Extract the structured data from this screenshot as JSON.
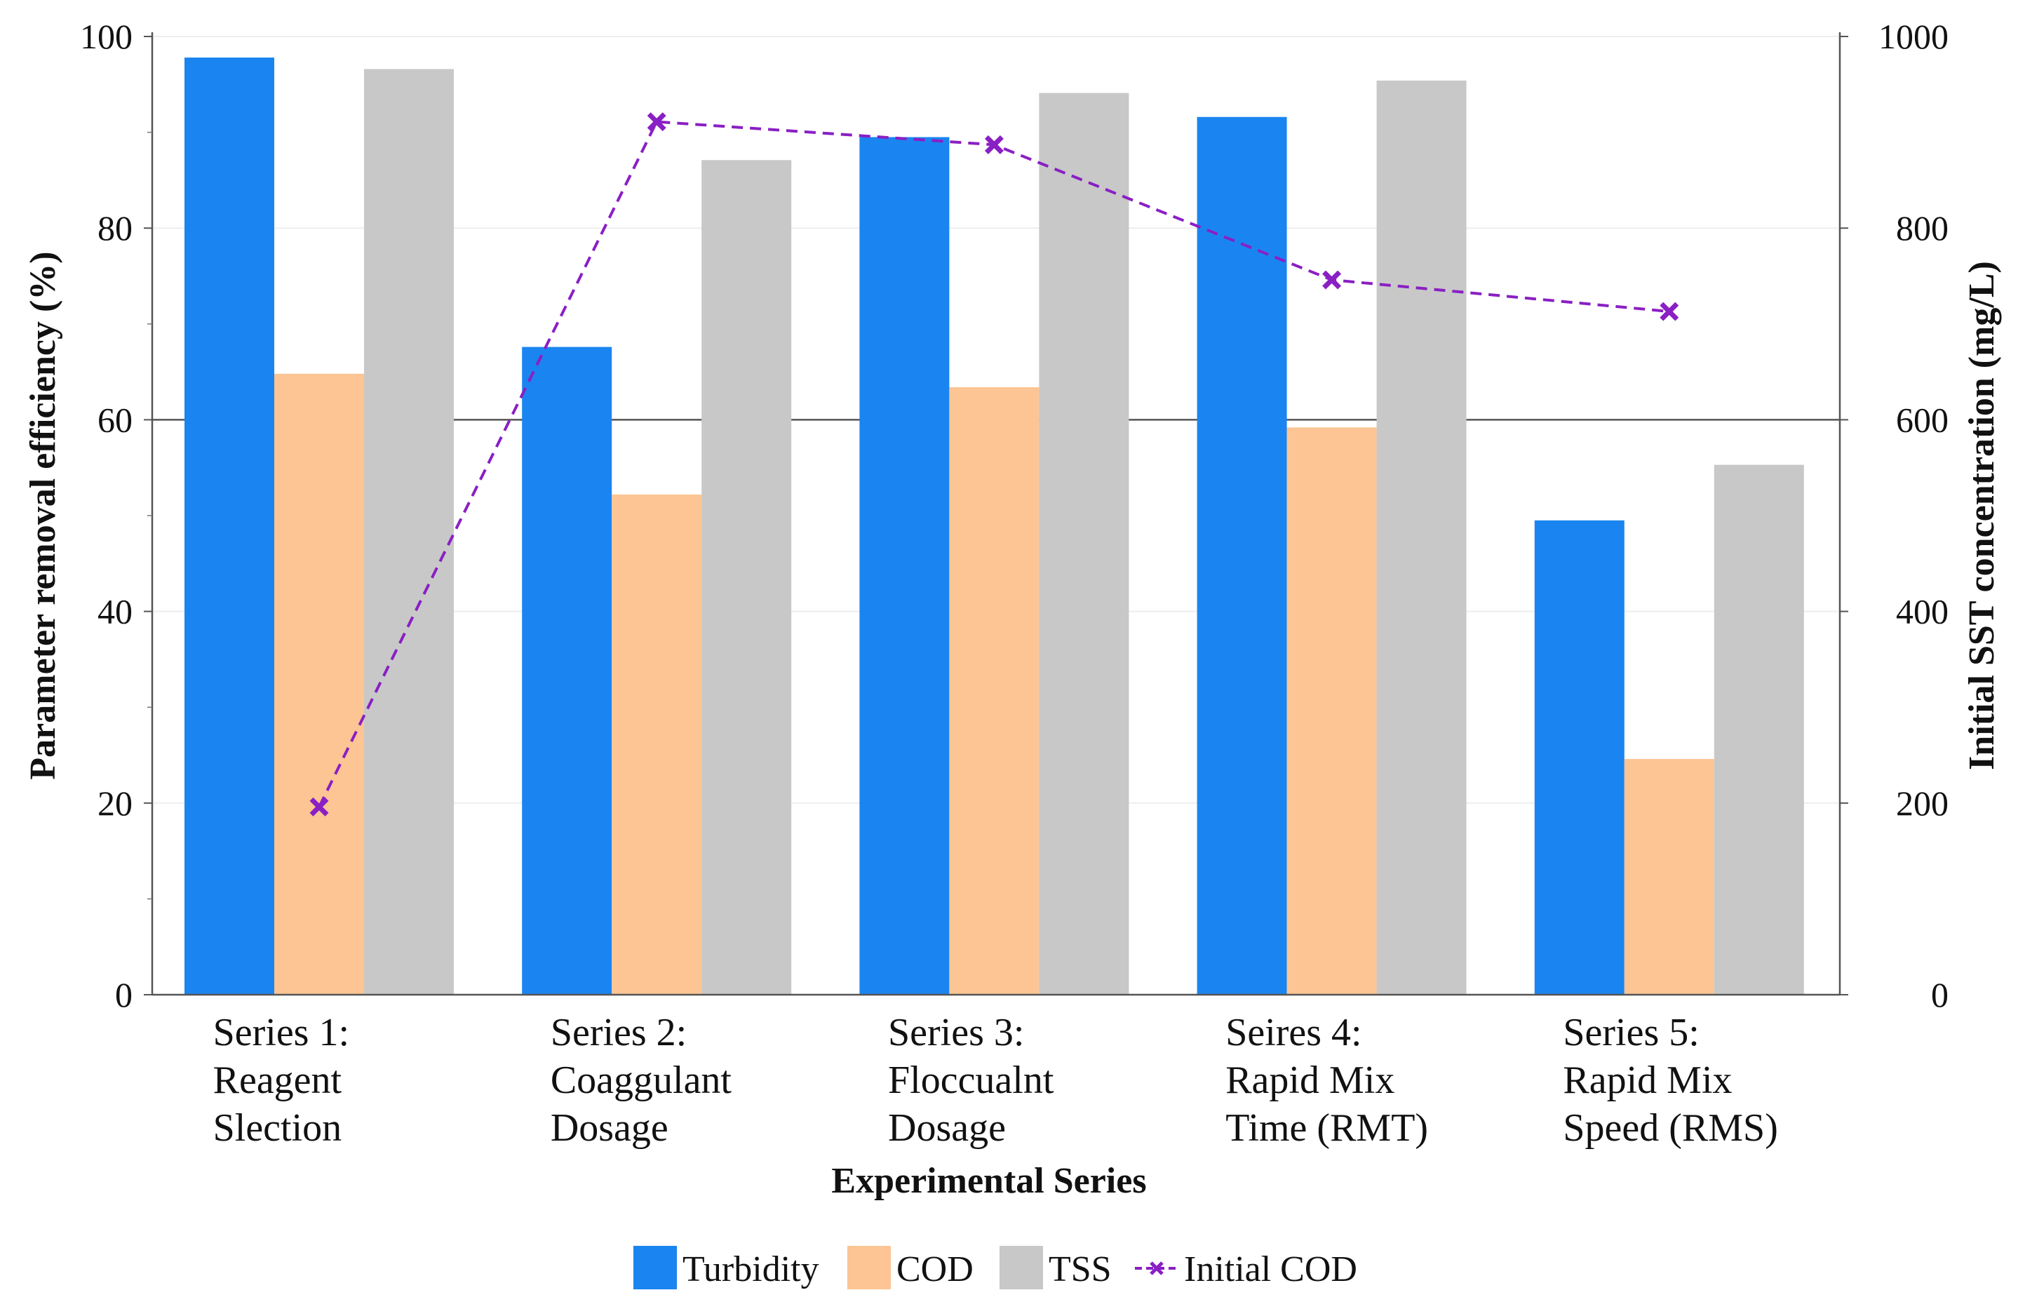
{
  "chart_data": {
    "type": "bar",
    "title": "",
    "xlabel": "Experimental Series",
    "ylabel": "Parameter removal efficiency (%)",
    "y2label": "Initial SST concentration (mg/L)",
    "ylim": [
      0,
      100
    ],
    "y2lim": [
      0,
      1000
    ],
    "yticks": [
      0,
      20,
      40,
      60,
      80,
      100
    ],
    "y2ticks": [
      0,
      200,
      400,
      600,
      800,
      1000
    ],
    "categories": [
      [
        "Series 1:",
        "Reagent",
        "Slection"
      ],
      [
        "Series 2:",
        "Coaggulant",
        "Dosage"
      ],
      [
        "Series 3:",
        "Floccualnt",
        "Dosage"
      ],
      [
        "Seires 4:",
        "Rapid Mix",
        "Time (RMT)"
      ],
      [
        "Series 5:",
        "Rapid Mix",
        "Speed (RMS)"
      ]
    ],
    "series": [
      {
        "name": "Turbidity",
        "type": "bar",
        "axis": "left",
        "color": "#1a85f0",
        "values": [
          97.8,
          67.6,
          89.5,
          91.6,
          49.5
        ]
      },
      {
        "name": "COD",
        "type": "bar",
        "axis": "left",
        "color": "#fcc593",
        "values": [
          64.8,
          52.2,
          63.4,
          59.2,
          24.6
        ]
      },
      {
        "name": "TSS",
        "type": "bar",
        "axis": "left",
        "color": "#c8c8c8",
        "values": [
          96.6,
          87.1,
          94.1,
          95.4,
          55.3
        ]
      },
      {
        "name": "Initial COD",
        "type": "line",
        "axis": "right",
        "color": "#8a1fc4",
        "values": [
          196,
          911,
          887,
          746,
          713
        ]
      }
    ],
    "reference_line": 60,
    "legend_position": "bottom"
  }
}
